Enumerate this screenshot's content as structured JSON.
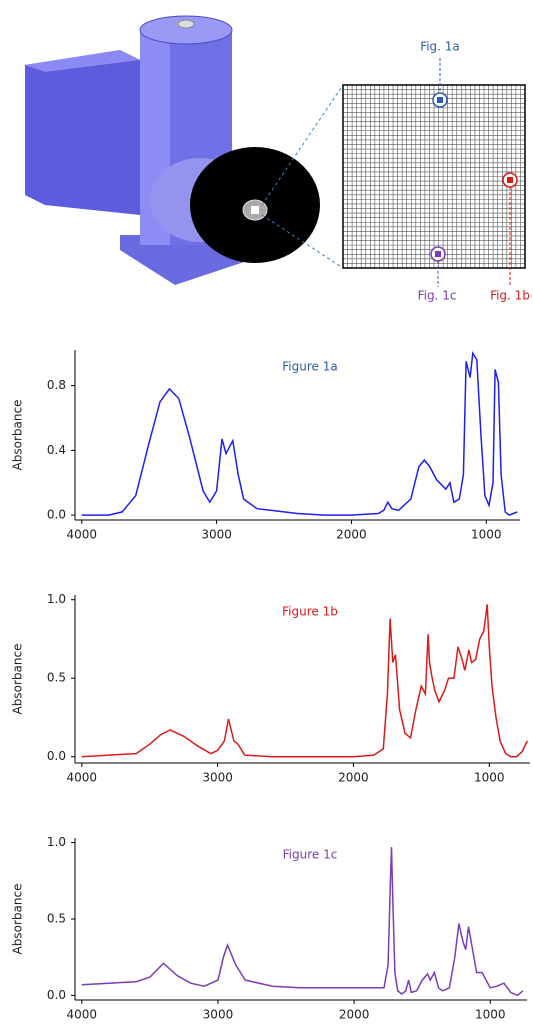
{
  "illustration": {
    "labels": [
      "Fig. 1a",
      "Fig. 1b",
      "Fig. 1c"
    ]
  },
  "chart_data": [
    {
      "type": "line",
      "title": "Figure 1a",
      "ylabel": "Absorbance",
      "color": "#1f1fee",
      "title_color": "#2a5caa",
      "x": [
        4000,
        3800,
        3700,
        3600,
        3500,
        3420,
        3350,
        3280,
        3200,
        3100,
        3050,
        3000,
        2960,
        2930,
        2880,
        2840,
        2800,
        2700,
        2600,
        2400,
        2200,
        2000,
        1800,
        1760,
        1730,
        1700,
        1650,
        1560,
        1500,
        1460,
        1420,
        1370,
        1300,
        1270,
        1240,
        1200,
        1170,
        1150,
        1120,
        1100,
        1070,
        1040,
        1010,
        980,
        950,
        935,
        910,
        890,
        860,
        830,
        800,
        770
      ],
      "values": [
        0.0,
        0.0,
        0.02,
        0.12,
        0.45,
        0.7,
        0.78,
        0.72,
        0.48,
        0.15,
        0.08,
        0.15,
        0.47,
        0.38,
        0.46,
        0.25,
        0.1,
        0.04,
        0.03,
        0.01,
        0.0,
        0.0,
        0.01,
        0.03,
        0.08,
        0.04,
        0.03,
        0.1,
        0.3,
        0.34,
        0.3,
        0.22,
        0.16,
        0.2,
        0.08,
        0.1,
        0.25,
        0.95,
        0.85,
        1.0,
        0.96,
        0.5,
        0.12,
        0.06,
        0.2,
        0.9,
        0.82,
        0.25,
        0.02,
        0.0,
        0.01,
        0.02
      ],
      "xlim": [
        4050,
        750
      ],
      "ylim": [
        -0.03,
        1.02
      ],
      "xticks": [
        4000,
        3000,
        2000,
        1000
      ],
      "yticks": [
        {
          "value": 0,
          "label": "0.0"
        },
        0.4,
        0.8
      ]
    },
    {
      "type": "line",
      "title": "Figure 1b",
      "ylabel": "Absorbance",
      "color": "#d81b1b",
      "title_color": "#d81b1b",
      "x": [
        4000,
        3800,
        3600,
        3500,
        3420,
        3350,
        3250,
        3150,
        3050,
        3000,
        2950,
        2920,
        2880,
        2850,
        2800,
        2600,
        2400,
        2200,
        2000,
        1850,
        1780,
        1750,
        1730,
        1710,
        1690,
        1660,
        1620,
        1580,
        1540,
        1500,
        1470,
        1450,
        1440,
        1420,
        1400,
        1370,
        1330,
        1300,
        1260,
        1230,
        1200,
        1180,
        1150,
        1130,
        1100,
        1070,
        1040,
        1015,
        1000,
        980,
        950,
        920,
        880,
        840,
        800,
        760,
        720
      ],
      "values": [
        0.0,
        0.01,
        0.02,
        0.08,
        0.14,
        0.17,
        0.13,
        0.07,
        0.02,
        0.04,
        0.1,
        0.24,
        0.1,
        0.08,
        0.01,
        0.0,
        0.0,
        0.0,
        0.0,
        0.01,
        0.05,
        0.4,
        0.88,
        0.6,
        0.65,
        0.3,
        0.15,
        0.12,
        0.3,
        0.45,
        0.4,
        0.78,
        0.6,
        0.5,
        0.42,
        0.35,
        0.42,
        0.5,
        0.5,
        0.7,
        0.62,
        0.55,
        0.68,
        0.6,
        0.62,
        0.75,
        0.8,
        0.97,
        0.7,
        0.45,
        0.25,
        0.1,
        0.02,
        0.0,
        0.0,
        0.03,
        0.1
      ],
      "xlim": [
        4050,
        700
      ],
      "ylim": [
        -0.04,
        1.03
      ],
      "xticks": [
        4000,
        3000,
        2000,
        1000
      ],
      "yticks": [
        {
          "value": 0,
          "label": "0.0"
        },
        0.5,
        {
          "value": 1,
          "label": "1.0"
        }
      ]
    },
    {
      "type": "line",
      "title": "Figure 1c",
      "ylabel": "Absorbance",
      "color": "#7a3db3",
      "title_color": "#7a3db3",
      "x": [
        4000,
        3800,
        3600,
        3500,
        3400,
        3300,
        3200,
        3100,
        3000,
        2960,
        2930,
        2870,
        2800,
        2600,
        2400,
        2200,
        2000,
        1900,
        1780,
        1750,
        1735,
        1725,
        1715,
        1700,
        1680,
        1650,
        1620,
        1600,
        1580,
        1540,
        1500,
        1460,
        1440,
        1410,
        1380,
        1350,
        1300,
        1260,
        1230,
        1200,
        1180,
        1160,
        1140,
        1100,
        1060,
        1000,
        950,
        900,
        850,
        800,
        760
      ],
      "values": [
        0.07,
        0.08,
        0.09,
        0.12,
        0.21,
        0.13,
        0.08,
        0.06,
        0.1,
        0.25,
        0.33,
        0.2,
        0.1,
        0.06,
        0.05,
        0.05,
        0.05,
        0.05,
        0.05,
        0.2,
        0.7,
        0.97,
        0.6,
        0.15,
        0.03,
        0.01,
        0.03,
        0.1,
        0.02,
        0.03,
        0.1,
        0.14,
        0.1,
        0.15,
        0.05,
        0.03,
        0.05,
        0.25,
        0.47,
        0.35,
        0.3,
        0.45,
        0.35,
        0.15,
        0.15,
        0.05,
        0.06,
        0.08,
        0.02,
        0.0,
        0.03
      ],
      "xlim": [
        4050,
        730
      ],
      "ylim": [
        -0.03,
        1.03
      ],
      "xticks": [
        4000,
        3000,
        2000,
        1000
      ],
      "yticks": [
        {
          "value": 0,
          "label": "0.0"
        },
        0.5,
        {
          "value": 1,
          "label": "1.0"
        }
      ]
    }
  ]
}
